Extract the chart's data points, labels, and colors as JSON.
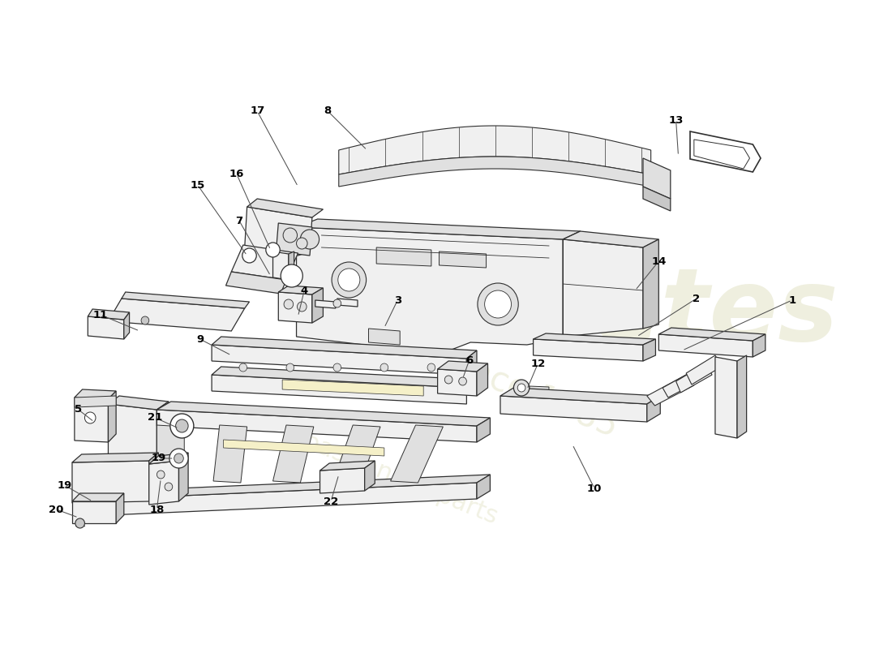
{
  "bg": "#ffffff",
  "lc": "#303030",
  "lw": 0.9,
  "fill_light": "#f0f0f0",
  "fill_mid": "#e0e0e0",
  "fill_dark": "#c8c8c8",
  "fill_yellow": "#f5f0c8",
  "wm_color": "#d8d8b0",
  "labels": [
    [
      "1",
      1010,
      370,
      870,
      432
    ],
    [
      "2",
      888,
      368,
      812,
      415
    ],
    [
      "3",
      507,
      370,
      490,
      404
    ],
    [
      "4",
      388,
      358,
      380,
      390
    ],
    [
      "5",
      100,
      505,
      120,
      520
    ],
    [
      "6",
      598,
      445,
      590,
      467
    ],
    [
      "7",
      305,
      272,
      345,
      340
    ],
    [
      "8",
      418,
      137,
      468,
      185
    ],
    [
      "9",
      255,
      418,
      295,
      438
    ],
    [
      "10",
      758,
      602,
      730,
      548
    ],
    [
      "11",
      128,
      388,
      178,
      408
    ],
    [
      "12",
      686,
      448,
      672,
      480
    ],
    [
      "13",
      862,
      148,
      865,
      192
    ],
    [
      "14",
      840,
      322,
      810,
      358
    ],
    [
      "15",
      252,
      228,
      315,
      315
    ],
    [
      "16",
      302,
      215,
      345,
      308
    ],
    [
      "17",
      328,
      137,
      380,
      230
    ],
    [
      "18",
      200,
      628,
      205,
      590
    ],
    [
      "19",
      82,
      598,
      118,
      618
    ],
    [
      "19",
      202,
      565,
      222,
      565
    ],
    [
      "20",
      72,
      628,
      100,
      638
    ],
    [
      "21",
      198,
      515,
      228,
      528
    ],
    [
      "22",
      422,
      618,
      432,
      585
    ]
  ]
}
